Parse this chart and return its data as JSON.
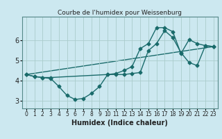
{
  "title": "Courbe de l'humidex pour Weissenburg",
  "xlabel": "Humidex (Indice chaleur)",
  "bg_color": "#cce8f0",
  "grid_color": "#aacccc",
  "line_color": "#1a6b6b",
  "xlim": [
    -0.5,
    23.5
  ],
  "ylim": [
    2.6,
    7.2
  ],
  "yticks": [
    3,
    4,
    5,
    6
  ],
  "xticks": [
    0,
    1,
    2,
    3,
    4,
    5,
    6,
    7,
    8,
    9,
    10,
    11,
    12,
    13,
    14,
    15,
    16,
    17,
    18,
    19,
    20,
    21,
    22,
    23
  ],
  "line1_x": [
    0,
    1,
    2,
    3,
    10,
    11,
    12,
    13,
    14,
    15,
    16,
    17,
    18,
    19,
    20,
    21,
    22,
    23
  ],
  "line1_y": [
    4.3,
    4.2,
    4.15,
    4.15,
    4.3,
    4.35,
    4.5,
    4.7,
    5.6,
    5.85,
    6.65,
    6.65,
    6.45,
    5.35,
    6.05,
    5.85,
    5.75,
    5.7
  ],
  "line2_x": [
    0,
    1,
    2,
    3,
    4,
    5,
    6,
    7,
    8,
    9,
    10,
    11,
    12,
    13,
    14,
    15,
    16,
    17,
    18,
    19,
    20,
    21,
    22,
    23
  ],
  "line2_y": [
    4.3,
    4.2,
    4.15,
    4.1,
    3.7,
    3.25,
    3.05,
    3.1,
    3.35,
    3.7,
    4.3,
    4.3,
    4.3,
    4.35,
    4.4,
    5.5,
    5.85,
    6.5,
    6.15,
    5.4,
    4.9,
    4.75,
    5.75,
    5.7
  ],
  "line3_x": [
    0,
    23
  ],
  "line3_y": [
    4.3,
    5.7
  ],
  "marker_size": 2.5,
  "line_width": 1.0,
  "tick_fontsize": 5.5,
  "label_fontsize": 7.0
}
